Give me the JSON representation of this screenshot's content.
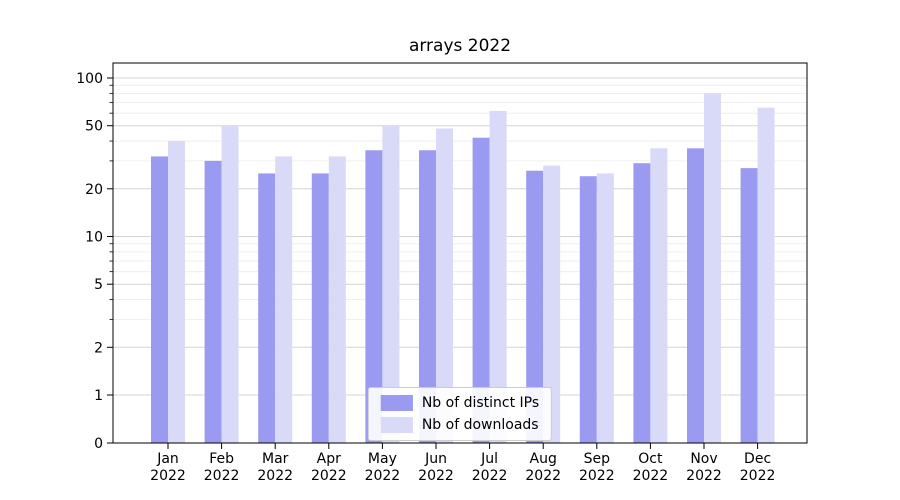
{
  "chart_data": {
    "type": "bar",
    "title": "arrays 2022",
    "categories": [
      "Jan",
      "Feb",
      "Mar",
      "Apr",
      "May",
      "Jun",
      "Jul",
      "Aug",
      "Sep",
      "Oct",
      "Nov",
      "Dec"
    ],
    "x_year_label": "2022",
    "series": [
      {
        "name": "Nb of distinct IPs",
        "color": "#9a9af0",
        "values": [
          32,
          30,
          25,
          25,
          35,
          35,
          42,
          26,
          24,
          29,
          36,
          27
        ]
      },
      {
        "name": "Nb of downloads",
        "color": "#d9d9f8",
        "values": [
          40,
          50,
          32,
          32,
          50,
          48,
          62,
          28,
          25,
          36,
          80,
          65
        ]
      }
    ],
    "yscale": "symlog",
    "yticks": [
      0,
      1,
      2,
      5,
      10,
      20,
      50,
      100
    ],
    "minor_yticks": [
      3,
      4,
      6,
      7,
      8,
      9,
      30,
      40,
      60,
      70,
      80,
      90
    ],
    "ylim": [
      0,
      124
    ],
    "grid": true,
    "legend_position": "lower center"
  },
  "colors": {
    "grid_major": "#d4d4d4",
    "grid_minor": "#ebebeb",
    "axis": "#000000",
    "text": "#000000",
    "legend_border": "#cccccc",
    "background": "#ffffff"
  }
}
